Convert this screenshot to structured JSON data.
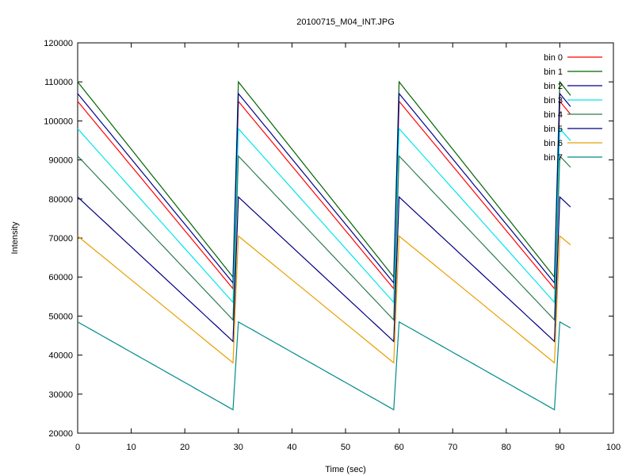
{
  "chart_data": {
    "type": "line",
    "title": "20100715_M04_INT.JPG",
    "xlabel": "Time (sec)",
    "ylabel": "Intensity",
    "xlim": [
      0,
      100
    ],
    "ylim": [
      20000,
      120000
    ],
    "xticks": [
      0,
      10,
      20,
      30,
      40,
      50,
      60,
      70,
      80,
      90,
      100
    ],
    "yticks": [
      20000,
      30000,
      40000,
      50000,
      60000,
      70000,
      80000,
      90000,
      100000,
      110000,
      120000
    ],
    "grid": false,
    "legend_position": "top-right",
    "series": [
      {
        "name": "bin 0",
        "color": "#ff0000",
        "start": 105000,
        "end": 57000
      },
      {
        "name": "bin 1",
        "color": "#006400",
        "start": 110000,
        "end": 60000
      },
      {
        "name": "bin 2",
        "color": "#00008b",
        "start": 107000,
        "end": 58500
      },
      {
        "name": "bin 3",
        "color": "#00e5ee",
        "start": 98000,
        "end": 53500
      },
      {
        "name": "bin 4",
        "color": "#2e7d4f",
        "start": 91000,
        "end": 49000
      },
      {
        "name": "bin 5",
        "color": "#000080",
        "start": 80500,
        "end": 43500
      },
      {
        "name": "bin 6",
        "color": "#e8a000",
        "start": 70500,
        "end": 38000
      },
      {
        "name": "bin 7",
        "color": "#008b8b",
        "start": 48500,
        "end": 26000
      }
    ],
    "cycle": {
      "period_sec": 30,
      "num_points_per_cycle": 30,
      "total_points": 93
    }
  }
}
